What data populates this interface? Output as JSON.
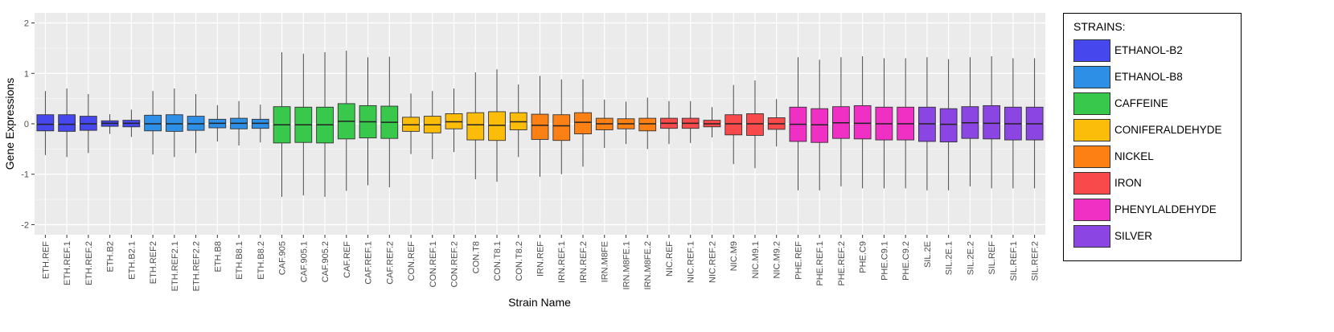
{
  "chart_data": {
    "type": "box",
    "xlabel": "Strain Name",
    "ylabel": "Gene Expressions",
    "ylim": [
      -2.2,
      2.2
    ],
    "yticks": [
      -2,
      -1,
      0,
      1,
      2
    ],
    "grid": true,
    "legend": {
      "title": "STRAINS:",
      "placement": "right",
      "items": [
        {
          "name": "ETHANOL-B2",
          "color": "#4747EE"
        },
        {
          "name": "ETHANOL-B8",
          "color": "#2E8FE6"
        },
        {
          "name": "CAFFEINE",
          "color": "#38C84C"
        },
        {
          "name": "CONIFERALDEHYDE",
          "color": "#FCBC0A"
        },
        {
          "name": "NICKEL",
          "color": "#FC8013"
        },
        {
          "name": "IRON",
          "color": "#F84A4A"
        },
        {
          "name": "PHENYLALDEHYDE",
          "color": "#F030C4"
        },
        {
          "name": "SILVER",
          "color": "#8A45E2"
        }
      ]
    },
    "boxes": [
      {
        "label": "ETH.REF",
        "group": "ETHANOL-B2",
        "min": -0.62,
        "q1": -0.14,
        "median": -0.01,
        "q3": 0.18,
        "max": 0.65
      },
      {
        "label": "ETH.REF.1",
        "group": "ETHANOL-B2",
        "min": -0.66,
        "q1": -0.15,
        "median": -0.01,
        "q3": 0.18,
        "max": 0.7
      },
      {
        "label": "ETH.REF.2",
        "group": "ETHANOL-B2",
        "min": -0.58,
        "q1": -0.13,
        "median": 0.0,
        "q3": 0.15,
        "max": 0.59
      },
      {
        "label": "ETH.B2",
        "group": "ETHANOL-B2",
        "min": -0.2,
        "q1": -0.05,
        "median": 0.01,
        "q3": 0.06,
        "max": 0.19
      },
      {
        "label": "ETH.B2.1",
        "group": "ETHANOL-B2",
        "min": -0.26,
        "q1": -0.06,
        "median": 0.01,
        "q3": 0.07,
        "max": 0.28
      },
      {
        "label": "ETH.REF2",
        "group": "ETHANOL-B8",
        "min": -0.61,
        "q1": -0.14,
        "median": 0.0,
        "q3": 0.17,
        "max": 0.65
      },
      {
        "label": "ETH.REF2.1",
        "group": "ETHANOL-B8",
        "min": -0.66,
        "q1": -0.15,
        "median": 0.0,
        "q3": 0.18,
        "max": 0.7
      },
      {
        "label": "ETH.REF2.2",
        "group": "ETHANOL-B8",
        "min": -0.58,
        "q1": -0.13,
        "median": 0.0,
        "q3": 0.15,
        "max": 0.59
      },
      {
        "label": "ETH.B8",
        "group": "ETHANOL-B8",
        "min": -0.35,
        "q1": -0.08,
        "median": 0.01,
        "q3": 0.09,
        "max": 0.37
      },
      {
        "label": "ETH.B8.1",
        "group": "ETHANOL-B8",
        "min": -0.43,
        "q1": -0.1,
        "median": 0.01,
        "q3": 0.11,
        "max": 0.45
      },
      {
        "label": "ETH.B8.2",
        "group": "ETHANOL-B8",
        "min": -0.37,
        "q1": -0.09,
        "median": 0.01,
        "q3": 0.09,
        "max": 0.38
      },
      {
        "label": "CAF.905",
        "group": "CAFFEINE",
        "min": -1.45,
        "q1": -0.38,
        "median": -0.02,
        "q3": 0.34,
        "max": 1.42
      },
      {
        "label": "CAF.905.1",
        "group": "CAFFEINE",
        "min": -1.42,
        "q1": -0.37,
        "median": -0.02,
        "q3": 0.33,
        "max": 1.39
      },
      {
        "label": "CAF.905.2",
        "group": "CAFFEINE",
        "min": -1.45,
        "q1": -0.38,
        "median": -0.02,
        "q3": 0.33,
        "max": 1.42
      },
      {
        "label": "CAF.REF",
        "group": "CAFFEINE",
        "min": -1.33,
        "q1": -0.3,
        "median": 0.05,
        "q3": 0.4,
        "max": 1.45
      },
      {
        "label": "CAF.REF.1",
        "group": "CAFFEINE",
        "min": -1.22,
        "q1": -0.28,
        "median": 0.04,
        "q3": 0.36,
        "max": 1.32
      },
      {
        "label": "CAF.REF.2",
        "group": "CAFFEINE",
        "min": -1.26,
        "q1": -0.29,
        "median": 0.03,
        "q3": 0.35,
        "max": 1.33
      },
      {
        "label": "CON.REF",
        "group": "CONIFERALDEHYDE",
        "min": -0.6,
        "q1": -0.15,
        "median": -0.02,
        "q3": 0.13,
        "max": 0.6
      },
      {
        "label": "CON.REF.1",
        "group": "CONIFERALDEHYDE",
        "min": -0.7,
        "q1": -0.18,
        "median": -0.02,
        "q3": 0.15,
        "max": 0.65
      },
      {
        "label": "CON.REF.2",
        "group": "CONIFERALDEHYDE",
        "min": -0.56,
        "q1": -0.1,
        "median": 0.04,
        "q3": 0.2,
        "max": 0.7
      },
      {
        "label": "CON.T8",
        "group": "CONIFERALDEHYDE",
        "min": -1.1,
        "q1": -0.32,
        "median": -0.02,
        "q3": 0.22,
        "max": 1.02
      },
      {
        "label": "CON.T8.1",
        "group": "CONIFERALDEHYDE",
        "min": -1.15,
        "q1": -0.33,
        "median": -0.03,
        "q3": 0.24,
        "max": 1.08
      },
      {
        "label": "CON.T8.2",
        "group": "CONIFERALDEHYDE",
        "min": -0.66,
        "q1": -0.12,
        "median": 0.04,
        "q3": 0.22,
        "max": 0.78
      },
      {
        "label": "IRN.REF",
        "group": "NICKEL",
        "min": -1.05,
        "q1": -0.31,
        "median": -0.03,
        "q3": 0.19,
        "max": 0.95
      },
      {
        "label": "IRN.REF.1",
        "group": "NICKEL",
        "min": -1.0,
        "q1": -0.33,
        "median": -0.04,
        "q3": 0.18,
        "max": 0.88
      },
      {
        "label": "IRN.REF.2",
        "group": "NICKEL",
        "min": -0.85,
        "q1": -0.2,
        "median": 0.03,
        "q3": 0.22,
        "max": 0.88
      },
      {
        "label": "IRN.M8FE",
        "group": "NICKEL",
        "min": -0.48,
        "q1": -0.12,
        "median": 0.0,
        "q3": 0.11,
        "max": 0.48
      },
      {
        "label": "IRN.M8FE.1",
        "group": "NICKEL",
        "min": -0.4,
        "q1": -0.1,
        "median": 0.0,
        "q3": 0.1,
        "max": 0.44
      },
      {
        "label": "IRN.M8FE.2",
        "group": "NICKEL",
        "min": -0.5,
        "q1": -0.14,
        "median": 0.0,
        "q3": 0.11,
        "max": 0.52
      },
      {
        "label": "NIC.REF",
        "group": "IRON",
        "min": -0.4,
        "q1": -0.09,
        "median": 0.01,
        "q3": 0.11,
        "max": 0.45
      },
      {
        "label": "NIC.REF.1",
        "group": "IRON",
        "min": -0.38,
        "q1": -0.09,
        "median": 0.01,
        "q3": 0.11,
        "max": 0.45
      },
      {
        "label": "NIC.REF.2",
        "group": "IRON",
        "min": -0.27,
        "q1": -0.06,
        "median": 0.0,
        "q3": 0.07,
        "max": 0.33
      },
      {
        "label": "NIC.M9",
        "group": "IRON",
        "min": -0.8,
        "q1": -0.22,
        "median": 0.0,
        "q3": 0.18,
        "max": 0.77
      },
      {
        "label": "NIC.M9.1",
        "group": "IRON",
        "min": -0.88,
        "q1": -0.23,
        "median": 0.0,
        "q3": 0.2,
        "max": 0.86
      },
      {
        "label": "NIC.M9.2",
        "group": "IRON",
        "min": -0.45,
        "q1": -0.11,
        "median": 0.0,
        "q3": 0.12,
        "max": 0.49
      },
      {
        "label": "PHE.REF",
        "group": "PHENYLALDEHYDE",
        "min": -1.32,
        "q1": -0.35,
        "median": -0.01,
        "q3": 0.33,
        "max": 1.32
      },
      {
        "label": "PHE.REF.1",
        "group": "PHENYLALDEHYDE",
        "min": -1.32,
        "q1": -0.37,
        "median": -0.02,
        "q3": 0.3,
        "max": 1.27
      },
      {
        "label": "PHE.REF.2",
        "group": "PHENYLALDEHYDE",
        "min": -1.24,
        "q1": -0.29,
        "median": 0.02,
        "q3": 0.34,
        "max": 1.32
      },
      {
        "label": "PHE.C9",
        "group": "PHENYLALDEHYDE",
        "min": -1.28,
        "q1": -0.3,
        "median": 0.01,
        "q3": 0.36,
        "max": 1.34
      },
      {
        "label": "PHE.C9.1",
        "group": "PHENYLALDEHYDE",
        "min": -1.28,
        "q1": -0.32,
        "median": 0.0,
        "q3": 0.33,
        "max": 1.3
      },
      {
        "label": "PHE.C9.2",
        "group": "PHENYLALDEHYDE",
        "min": -1.28,
        "q1": -0.32,
        "median": 0.0,
        "q3": 0.33,
        "max": 1.3
      },
      {
        "label": "SIL.2E",
        "group": "SILVER",
        "min": -1.32,
        "q1": -0.35,
        "median": 0.0,
        "q3": 0.33,
        "max": 1.32
      },
      {
        "label": "SIL.2E.1",
        "group": "SILVER",
        "min": -1.32,
        "q1": -0.36,
        "median": -0.01,
        "q3": 0.3,
        "max": 1.28
      },
      {
        "label": "SIL.2E.2",
        "group": "SILVER",
        "min": -1.24,
        "q1": -0.29,
        "median": 0.02,
        "q3": 0.34,
        "max": 1.32
      },
      {
        "label": "SIL.REF",
        "group": "SILVER",
        "min": -1.28,
        "q1": -0.3,
        "median": 0.01,
        "q3": 0.36,
        "max": 1.34
      },
      {
        "label": "SIL.REF.1",
        "group": "SILVER",
        "min": -1.28,
        "q1": -0.32,
        "median": 0.0,
        "q3": 0.33,
        "max": 1.3
      },
      {
        "label": "SIL.REF.2",
        "group": "SILVER",
        "min": -1.28,
        "q1": -0.32,
        "median": 0.0,
        "q3": 0.33,
        "max": 1.3
      }
    ]
  }
}
